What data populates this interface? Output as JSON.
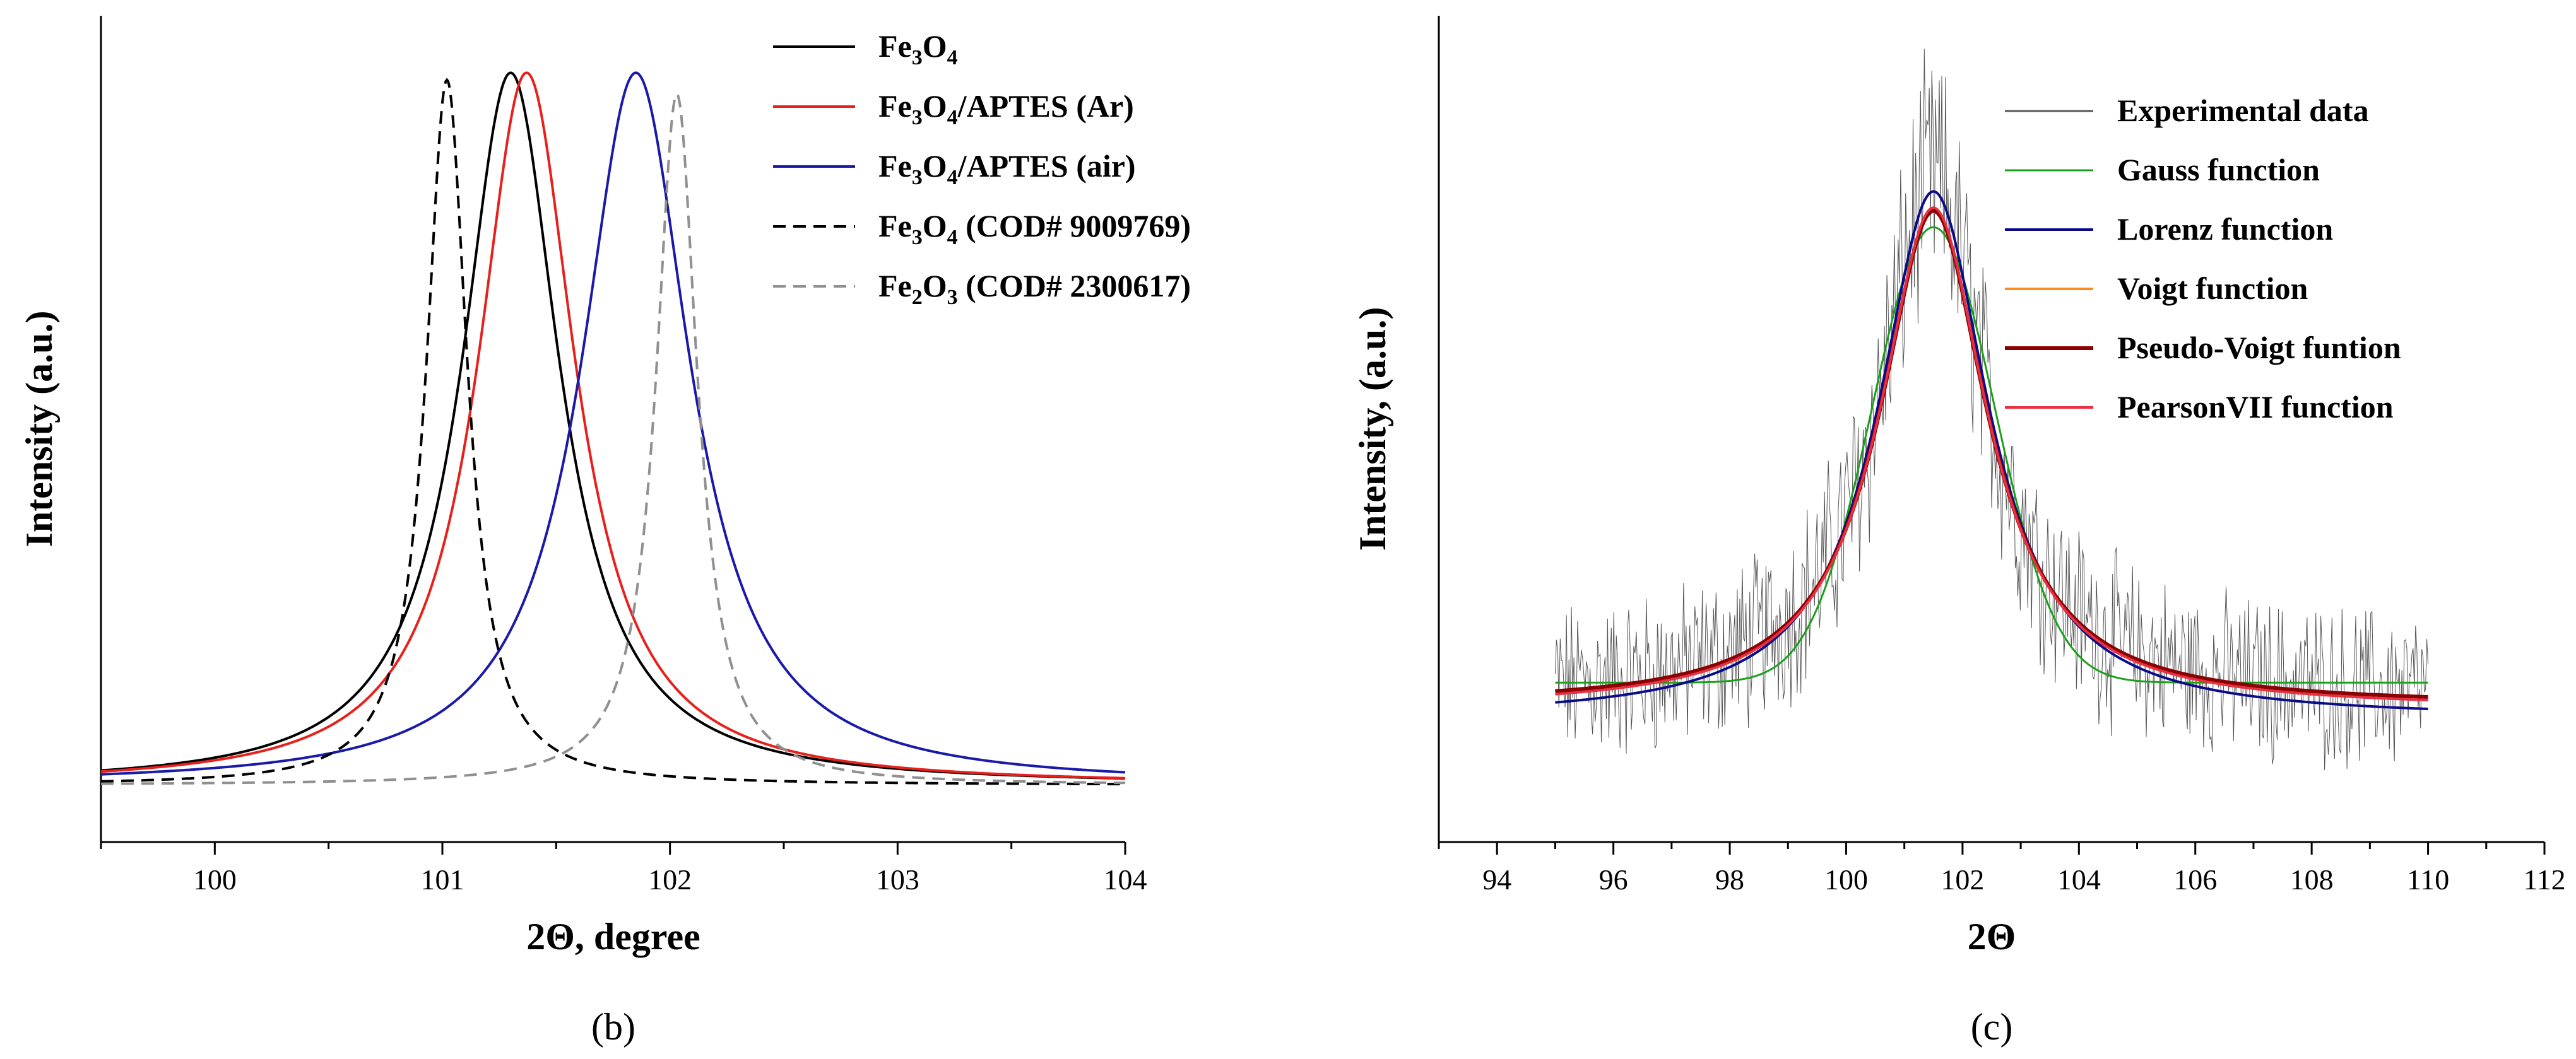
{
  "chart_data": [
    {
      "panel": "b",
      "panel_label": "(b)",
      "type": "line",
      "xlabel": "2Θ, degree",
      "ylabel": "Intensity (a.u.)",
      "xlim": [
        99.5,
        104
      ],
      "ylim": [
        -0.08,
        1.08
      ],
      "xticks": [
        100,
        101,
        102,
        103,
        104
      ],
      "legend_position": "top-right",
      "series": [
        {
          "name": "Fe3O4",
          "sub": "3|4",
          "suffix": "",
          "color": "#000000",
          "dash": "solid",
          "center": 101.3,
          "gamma": 0.26,
          "amplitude": 1.0
        },
        {
          "name": "Fe3O4/APTES (Ar)",
          "sub": "3|4",
          "suffix": "/APTES (Ar)",
          "color": "#e8201c",
          "dash": "solid",
          "center": 101.37,
          "gamma": 0.26,
          "amplitude": 1.0
        },
        {
          "name": "Fe3O4/APTES (air)",
          "sub": "3|4",
          "suffix": "/APTES (air)",
          "color": "#1a1aaa",
          "dash": "solid",
          "center": 101.85,
          "gamma": 0.29,
          "amplitude": 1.0
        },
        {
          "name": "Fe3O4 (COD# 9009769)",
          "sub": "3|4",
          "suffix": " (COD# 9009769)",
          "color": "#000000",
          "dash": "dashed",
          "center": 101.02,
          "gamma": 0.11,
          "amplitude": 0.99
        },
        {
          "name": "Fe2O3 (COD# 2300617)",
          "sub": "2|3",
          "suffix": " (COD# 2300617)",
          "color": "#909090",
          "dash": "dashed",
          "center": 102.03,
          "gamma": 0.11,
          "amplitude": 0.97
        }
      ]
    },
    {
      "panel": "c",
      "panel_label": "(c)",
      "type": "line",
      "xlabel": "2Θ",
      "ylabel": "Intensity, (a.u.)",
      "xlim": [
        93,
        112
      ],
      "ylim": [
        -0.17,
        1.1
      ],
      "xticks": [
        94,
        96,
        98,
        100,
        102,
        104,
        106,
        108,
        110,
        112
      ],
      "legend_position": "top-right",
      "experimental_range": [
        95,
        110
      ],
      "series": [
        {
          "name": "Experimental data",
          "color": "#555555",
          "width": 1,
          "center": 101.5,
          "amplitude": 0.8,
          "gamma": 1.1,
          "baseline": 0.05
        },
        {
          "name": "Gauss function",
          "color": "#1aa01a",
          "width": 3,
          "center": 101.5,
          "amplitude": 0.7,
          "sigma": 1.05,
          "baseline": 0.075
        },
        {
          "name": "Lorenz function",
          "color": "#0a0a8a",
          "width": 4,
          "center": 101.5,
          "amplitude": 0.81,
          "gamma": 1.15,
          "baseline": 0.02
        },
        {
          "name": "Voigt function",
          "color": "#ff8c1a",
          "width": 4,
          "center": 101.5,
          "amplitude": 0.76,
          "gamma": 1.12,
          "baseline": 0.04
        },
        {
          "name": "Pseudo-Voigt funtion",
          "color": "#8b0000",
          "width": 6,
          "center": 101.5,
          "amplitude": 0.76,
          "gamma": 1.12,
          "baseline": 0.04
        },
        {
          "name": "PearsonVII function",
          "color": "#e83040",
          "width": 4,
          "center": 101.5,
          "amplitude": 0.77,
          "gamma": 1.12,
          "baseline": 0.035
        }
      ]
    }
  ]
}
